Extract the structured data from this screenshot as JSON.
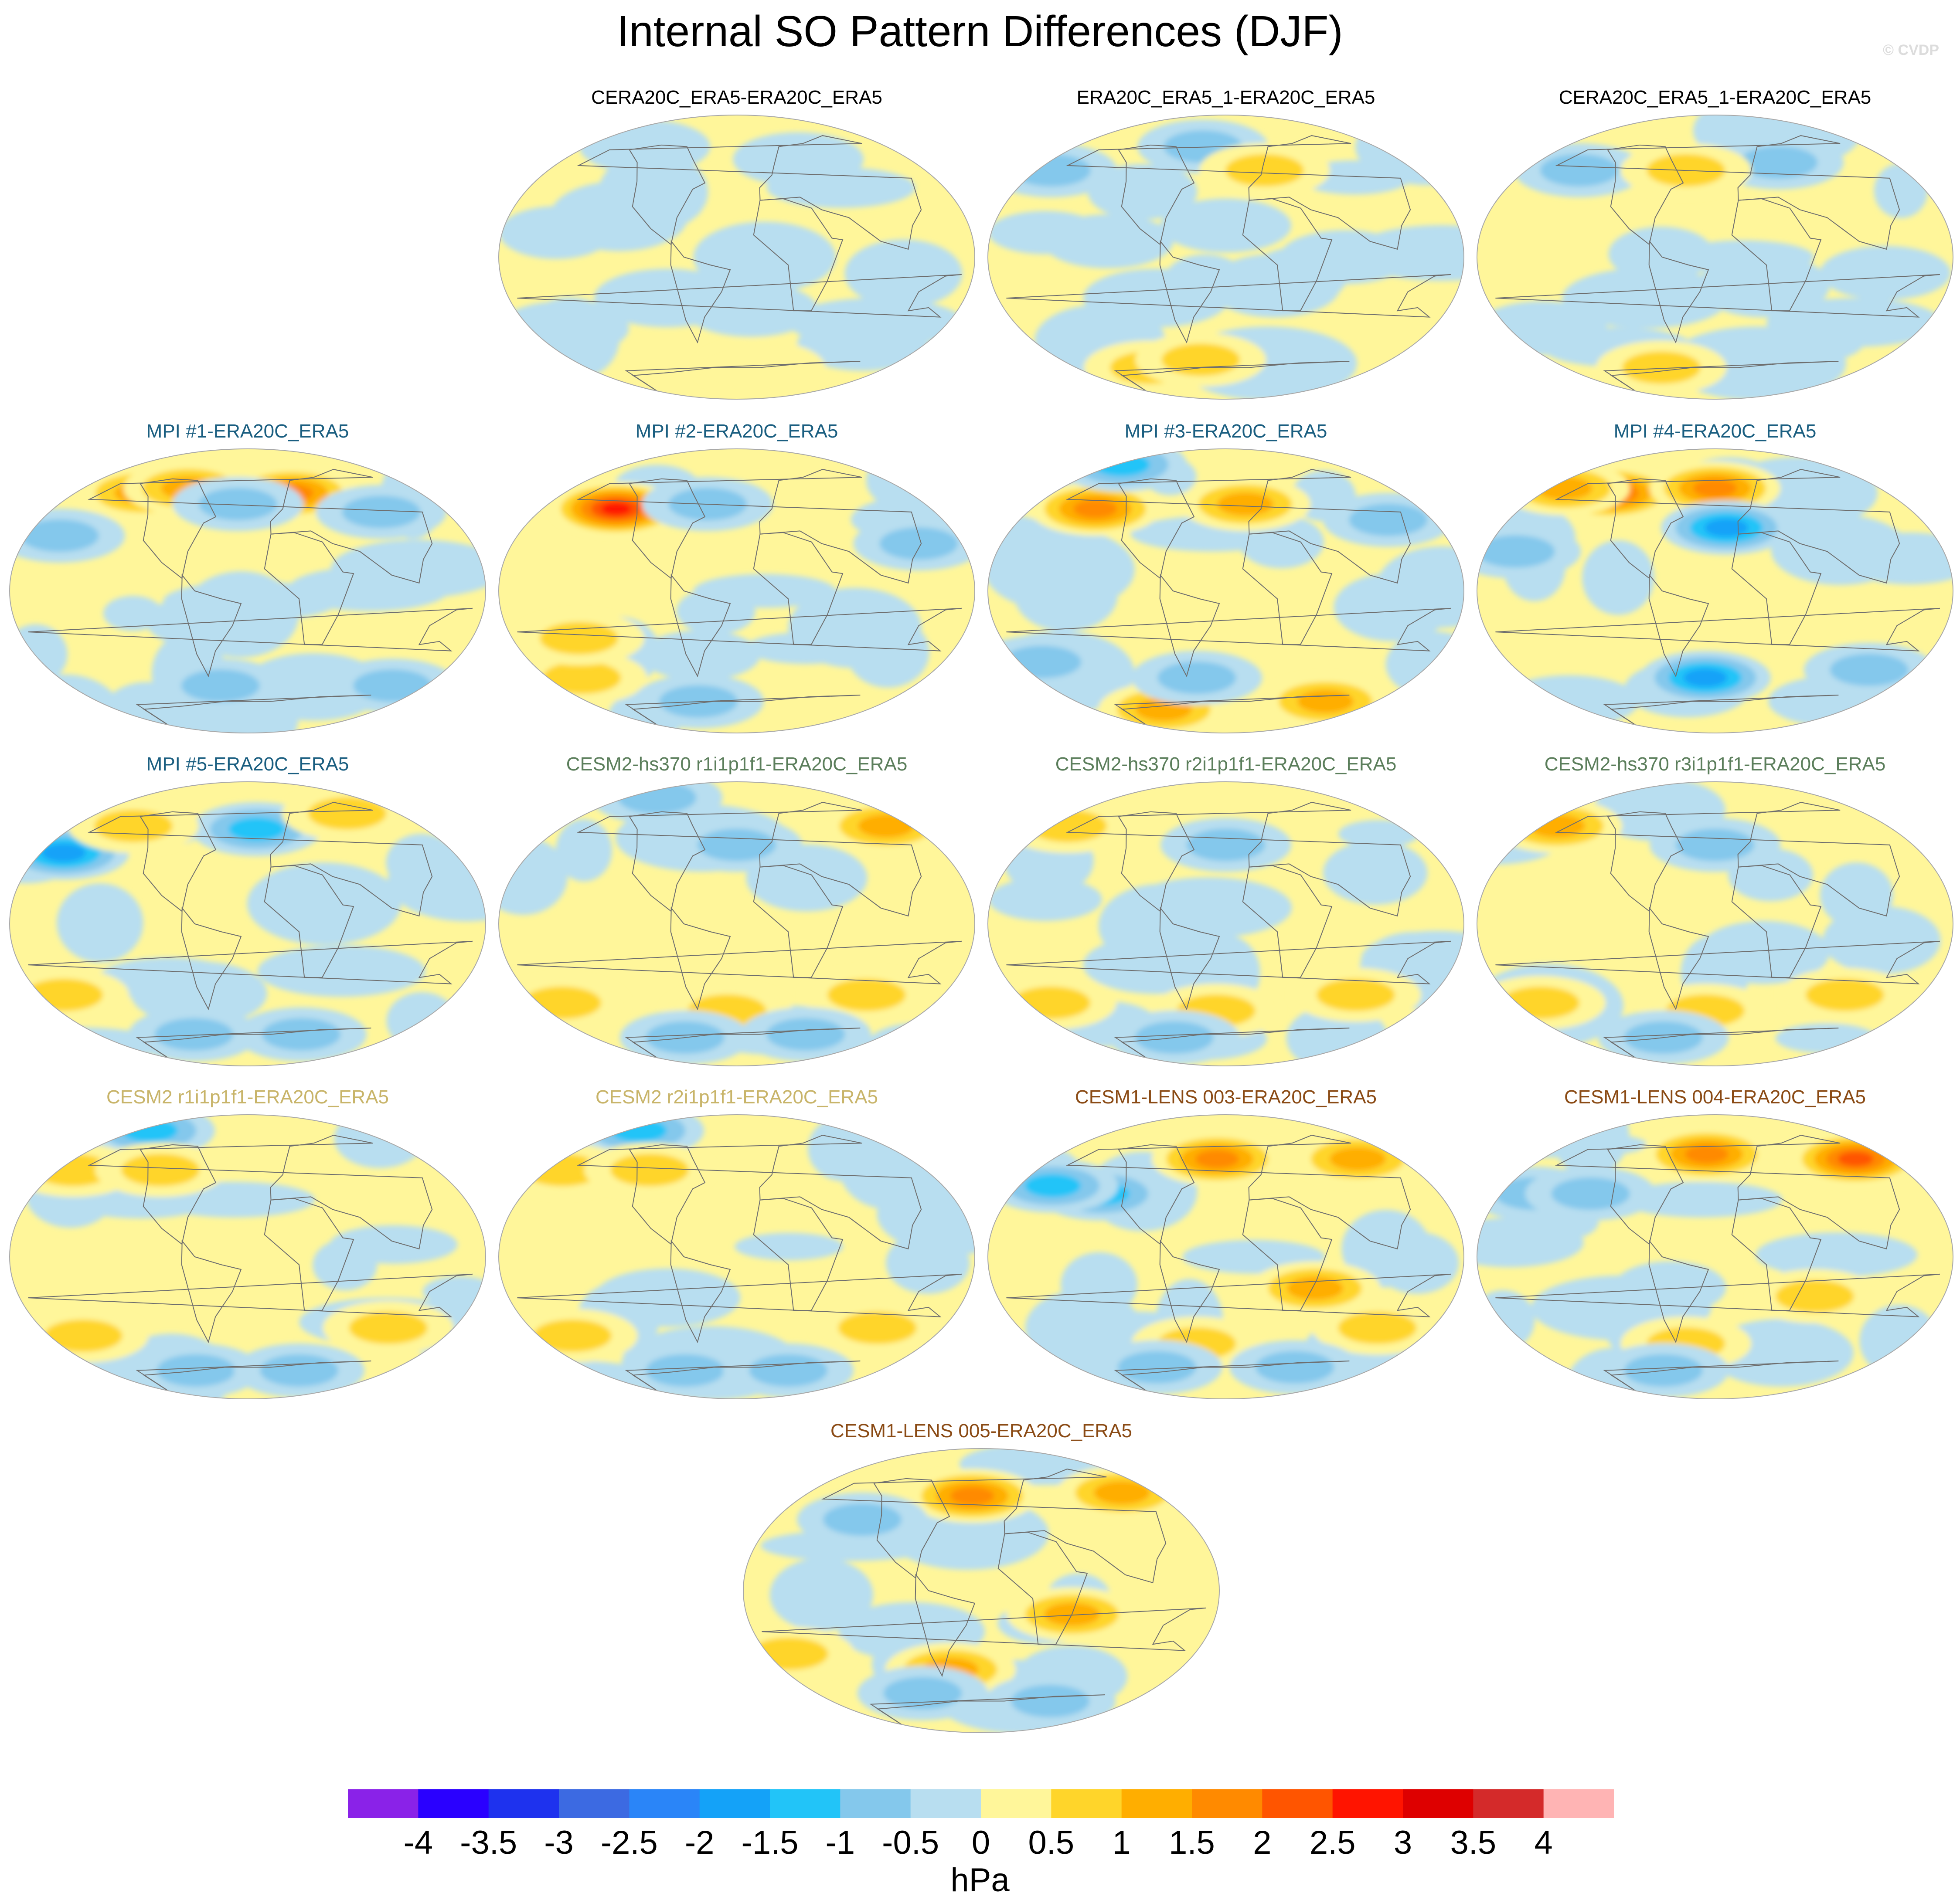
{
  "title": "Internal SO Pattern Differences (DJF)",
  "copyright": "© CVDP",
  "chart_data": {
    "type": "heatmap",
    "projection": "global map panels (pseudo-elliptical), Pacific-centered, coastlines overlaid",
    "panels": [
      {
        "name": "CERA20C_ERA5-ERA20C_ERA5",
        "title_color": "#000000",
        "grid_pos": [
          1,
          0
        ],
        "features": [
          {
            "lon": 100,
            "lat": -55,
            "value": -0.3
          },
          {
            "lon": 170,
            "lat": -45,
            "value": -0.3
          },
          {
            "lon": 40,
            "lat": 62,
            "value": -0.3
          },
          {
            "lon": -150,
            "lat": 70,
            "value": -0.3
          },
          {
            "lon": 0,
            "lat": -70,
            "value": 0.3
          }
        ]
      },
      {
        "name": "ERA20C_ERA5_1-ERA20C_ERA5",
        "title_color": "#000000",
        "grid_pos": [
          2,
          0
        ],
        "features": [
          {
            "lon": 150,
            "lat": 55,
            "value": -0.8
          },
          {
            "lon": -60,
            "lat": 70,
            "value": -0.7
          },
          {
            "lon": 10,
            "lat": 55,
            "value": 0.6
          },
          {
            "lon": -130,
            "lat": -70,
            "value": 0.7
          },
          {
            "lon": -60,
            "lat": -65,
            "value": 0.6
          },
          {
            "lon": -120,
            "lat": 10,
            "value": -0.3
          },
          {
            "lon": 60,
            "lat": 0,
            "value": -0.3
          },
          {
            "lon": -30,
            "lat": 20,
            "value": -0.3
          }
        ]
      },
      {
        "name": "CERA20C_ERA5_1-ERA20C_ERA5",
        "title_color": "#000000",
        "grid_pos": [
          3,
          0
        ],
        "features": [
          {
            "lon": -170,
            "lat": 55,
            "value": -0.8
          },
          {
            "lon": 40,
            "lat": 60,
            "value": -0.6
          },
          {
            "lon": -60,
            "lat": 55,
            "value": 0.6
          },
          {
            "lon": -100,
            "lat": -70,
            "value": 0.7
          },
          {
            "lon": 170,
            "lat": -45,
            "value": -0.4
          },
          {
            "lon": 100,
            "lat": -10,
            "value": -0.3
          }
        ]
      },
      {
        "name": "MPI #1-ERA20C_ERA5",
        "title_color": "#1a5e80",
        "grid_pos": [
          0,
          1
        ],
        "features": [
          {
            "lon": 20,
            "lat": 62,
            "value": 1.6
          },
          {
            "lon": -150,
            "lat": 62,
            "value": 1.4
          },
          {
            "lon": -100,
            "lat": 65,
            "value": 1.2
          },
          {
            "lon": -40,
            "lat": 55,
            "value": -1.0
          },
          {
            "lon": 170,
            "lat": 35,
            "value": -1.0
          },
          {
            "lon": 100,
            "lat": 50,
            "value": -0.8
          },
          {
            "lon": 130,
            "lat": -60,
            "value": -0.6
          },
          {
            "lon": -60,
            "lat": -60,
            "value": -0.6
          }
        ]
      },
      {
        "name": "MPI #2-ERA20C_ERA5",
        "title_color": "#1a5e80",
        "grid_pos": [
          1,
          1
        ],
        "features": [
          {
            "lon": -150,
            "lat": 52,
            "value": 2.6
          },
          {
            "lon": -60,
            "lat": 55,
            "value": -0.8
          },
          {
            "lon": 120,
            "lat": 30,
            "value": -0.6
          },
          {
            "lon": 170,
            "lat": -55,
            "value": 0.7
          },
          {
            "lon": -160,
            "lat": -30,
            "value": 0.6
          },
          {
            "lon": -80,
            "lat": -70,
            "value": -0.6
          }
        ]
      },
      {
        "name": "MPI #3-ERA20C_ERA5",
        "title_color": "#1a5e80",
        "grid_pos": [
          2,
          1
        ],
        "features": [
          {
            "lon": -160,
            "lat": 52,
            "value": 1.9
          },
          {
            "lon": -10,
            "lat": 55,
            "value": 1.5
          },
          {
            "lon": 160,
            "lat": 80,
            "value": -1.5
          },
          {
            "lon": 120,
            "lat": 45,
            "value": -0.8
          },
          {
            "lon": 100,
            "lat": -70,
            "value": 1.2
          },
          {
            "lon": -120,
            "lat": -75,
            "value": 1.3
          },
          {
            "lon": 160,
            "lat": -45,
            "value": -0.6
          },
          {
            "lon": -60,
            "lat": -55,
            "value": -0.6
          }
        ]
      },
      {
        "name": "MPI #4-ERA20C_ERA5",
        "title_color": "#1a5e80",
        "grid_pos": [
          3,
          1
        ],
        "features": [
          {
            "lon": -150,
            "lat": 62,
            "value": 2.3
          },
          {
            "lon": 150,
            "lat": 65,
            "value": 1.5
          },
          {
            "lon": -30,
            "lat": 65,
            "value": 1.6
          },
          {
            "lon": -20,
            "lat": 40,
            "value": -1.6
          },
          {
            "lon": 170,
            "lat": 25,
            "value": -0.8
          },
          {
            "lon": -40,
            "lat": -55,
            "value": -1.6
          },
          {
            "lon": 120,
            "lat": -50,
            "value": -0.6
          }
        ]
      },
      {
        "name": "MPI #5-ERA20C_ERA5",
        "title_color": "#1a5e80",
        "grid_pos": [
          0,
          2
        ],
        "features": [
          {
            "lon": 160,
            "lat": 45,
            "value": -1.6
          },
          {
            "lon": -20,
            "lat": 60,
            "value": -1.1
          },
          {
            "lon": -160,
            "lat": 62,
            "value": 1.0
          },
          {
            "lon": 100,
            "lat": 70,
            "value": 0.8
          },
          {
            "lon": 160,
            "lat": -45,
            "value": 0.7
          },
          {
            "lon": 40,
            "lat": -70,
            "value": -1.0
          },
          {
            "lon": -100,
            "lat": -70,
            "value": -0.8
          }
        ]
      },
      {
        "name": "CESM2-hs370 r1i1p1f1-ERA20C_ERA5",
        "title_color": "#5b7e5b",
        "grid_pos": [
          1,
          2
        ],
        "features": [
          {
            "lon": 140,
            "lat": 62,
            "value": 1.1
          },
          {
            "lon": -30,
            "lat": 50,
            "value": -0.8
          },
          {
            "lon": -160,
            "lat": 80,
            "value": -0.6
          },
          {
            "lon": 90,
            "lat": -45,
            "value": 0.8
          },
          {
            "lon": 160,
            "lat": -50,
            "value": 0.7
          },
          {
            "lon": -40,
            "lat": -55,
            "value": 0.6
          },
          {
            "lon": -100,
            "lat": -72,
            "value": -0.8
          },
          {
            "lon": 60,
            "lat": -70,
            "value": -0.6
          }
        ]
      },
      {
        "name": "CESM2-hs370 r2i1p1f1-ERA20C_ERA5",
        "title_color": "#5b7e5b",
        "grid_pos": [
          2,
          2
        ],
        "features": [
          {
            "lon": 150,
            "lat": 62,
            "value": 1.0
          },
          {
            "lon": -30,
            "lat": 50,
            "value": -0.8
          },
          {
            "lon": 90,
            "lat": -45,
            "value": 0.8
          },
          {
            "lon": 160,
            "lat": -50,
            "value": 0.7
          },
          {
            "lon": -40,
            "lat": -55,
            "value": 0.6
          },
          {
            "lon": -100,
            "lat": -72,
            "value": -0.8
          }
        ]
      },
      {
        "name": "CESM2-hs370 r3i1p1f1-ERA20C_ERA5",
        "title_color": "#5b7e5b",
        "grid_pos": [
          3,
          2
        ],
        "features": [
          {
            "lon": 150,
            "lat": 62,
            "value": 1.2
          },
          {
            "lon": -30,
            "lat": 50,
            "value": -0.8
          },
          {
            "lon": 90,
            "lat": -45,
            "value": 0.9
          },
          {
            "lon": 160,
            "lat": -50,
            "value": 0.7
          },
          {
            "lon": -40,
            "lat": -55,
            "value": 0.6
          },
          {
            "lon": -100,
            "lat": -72,
            "value": -0.8
          }
        ]
      },
      {
        "name": "CESM2 r1i1p1f1-ERA20C_ERA5",
        "title_color": "#c8b469",
        "grid_pos": [
          0,
          3
        ],
        "features": [
          {
            "lon": 170,
            "lat": 80,
            "value": -1.5
          },
          {
            "lon": 150,
            "lat": 55,
            "value": 0.8
          },
          {
            "lon": -120,
            "lat": 55,
            "value": 0.6
          },
          {
            "lon": 100,
            "lat": -45,
            "value": 0.8
          },
          {
            "lon": 170,
            "lat": -50,
            "value": 0.7
          },
          {
            "lon": -100,
            "lat": -72,
            "value": -0.7
          },
          {
            "lon": 40,
            "lat": -72,
            "value": -0.6
          }
        ]
      },
      {
        "name": "CESM2 r2i1p1f1-ERA20C_ERA5",
        "title_color": "#c8b469",
        "grid_pos": [
          1,
          3
        ],
        "features": [
          {
            "lon": 170,
            "lat": 80,
            "value": -1.5
          },
          {
            "lon": 150,
            "lat": 55,
            "value": 0.8
          },
          {
            "lon": -120,
            "lat": 55,
            "value": 0.6
          },
          {
            "lon": 100,
            "lat": -45,
            "value": 0.8
          },
          {
            "lon": 170,
            "lat": -50,
            "value": 0.7
          },
          {
            "lon": -100,
            "lat": -72,
            "value": -0.7
          },
          {
            "lon": 40,
            "lat": -72,
            "value": -0.6
          }
        ]
      },
      {
        "name": "CESM1-LENS 003-ERA20C_ERA5",
        "title_color": "#8a4a14",
        "grid_pos": [
          2,
          3
        ],
        "features": [
          {
            "lon": 120,
            "lat": 62,
            "value": 1.5
          },
          {
            "lon": -40,
            "lat": 62,
            "value": 2.0
          },
          {
            "lon": -140,
            "lat": 40,
            "value": -1.5
          },
          {
            "lon": 170,
            "lat": 45,
            "value": -1.2
          },
          {
            "lon": 40,
            "lat": -20,
            "value": 1.1
          },
          {
            "lon": 110,
            "lat": -45,
            "value": 0.8
          },
          {
            "lon": -60,
            "lat": -55,
            "value": 0.9
          },
          {
            "lon": -120,
            "lat": -70,
            "value": -0.8
          },
          {
            "lon": 60,
            "lat": -70,
            "value": -0.8
          }
        ]
      },
      {
        "name": "CESM1-LENS 004-ERA20C_ERA5",
        "title_color": "#8a4a14",
        "grid_pos": [
          3,
          3
        ],
        "features": [
          {
            "lon": 130,
            "lat": 62,
            "value": 2.1
          },
          {
            "lon": -40,
            "lat": 65,
            "value": 1.8
          },
          {
            "lon": 170,
            "lat": 40,
            "value": -1.0
          },
          {
            "lon": -140,
            "lat": 40,
            "value": -0.8
          },
          {
            "lon": 50,
            "lat": -25,
            "value": 0.8
          },
          {
            "lon": -60,
            "lat": -55,
            "value": 0.8
          },
          {
            "lon": -100,
            "lat": -72,
            "value": -0.9
          }
        ]
      },
      {
        "name": "CESM1-LENS 005-ERA20C_ERA5",
        "title_color": "#8a4a14",
        "grid_pos": [
          1.5,
          4
        ],
        "features": [
          {
            "lon": 130,
            "lat": 62,
            "value": 1.3
          },
          {
            "lon": -40,
            "lat": 60,
            "value": 1.6
          },
          {
            "lon": 40,
            "lat": -15,
            "value": 1.3
          },
          {
            "lon": -60,
            "lat": -50,
            "value": 1.2
          },
          {
            "lon": -140,
            "lat": 45,
            "value": -0.8
          },
          {
            "lon": 160,
            "lat": -40,
            "value": 0.6
          },
          {
            "lon": -100,
            "lat": -65,
            "value": -0.9
          },
          {
            "lon": 60,
            "lat": -70,
            "value": -0.6
          }
        ]
      }
    ],
    "colorbar": {
      "labels": [
        "-4",
        "-3.5",
        "-3",
        "-2.5",
        "-2",
        "-1.5",
        "-1",
        "-0.5",
        "0",
        "0.5",
        "1",
        "1.5",
        "2",
        "2.5",
        "3",
        "3.5",
        "4"
      ],
      "levels": [
        -4,
        -3.5,
        -3,
        -2.5,
        -2,
        -1.5,
        -1,
        -0.5,
        0,
        0.5,
        1,
        1.5,
        2,
        2.5,
        3,
        3.5,
        4
      ],
      "colors": [
        "#8a22e8",
        "#2a00ff",
        "#1e32ee",
        "#3c6ae2",
        "#2a85f8",
        "#14a2f8",
        "#22c4f8",
        "#84c8ec",
        "#b8def0",
        "#fff69a",
        "#ffd52a",
        "#ffae00",
        "#ff8a00",
        "#ff5500",
        "#ff1400",
        "#de0000",
        "#d42a2a",
        "#ffb4b4"
      ],
      "units": "hPa"
    }
  }
}
